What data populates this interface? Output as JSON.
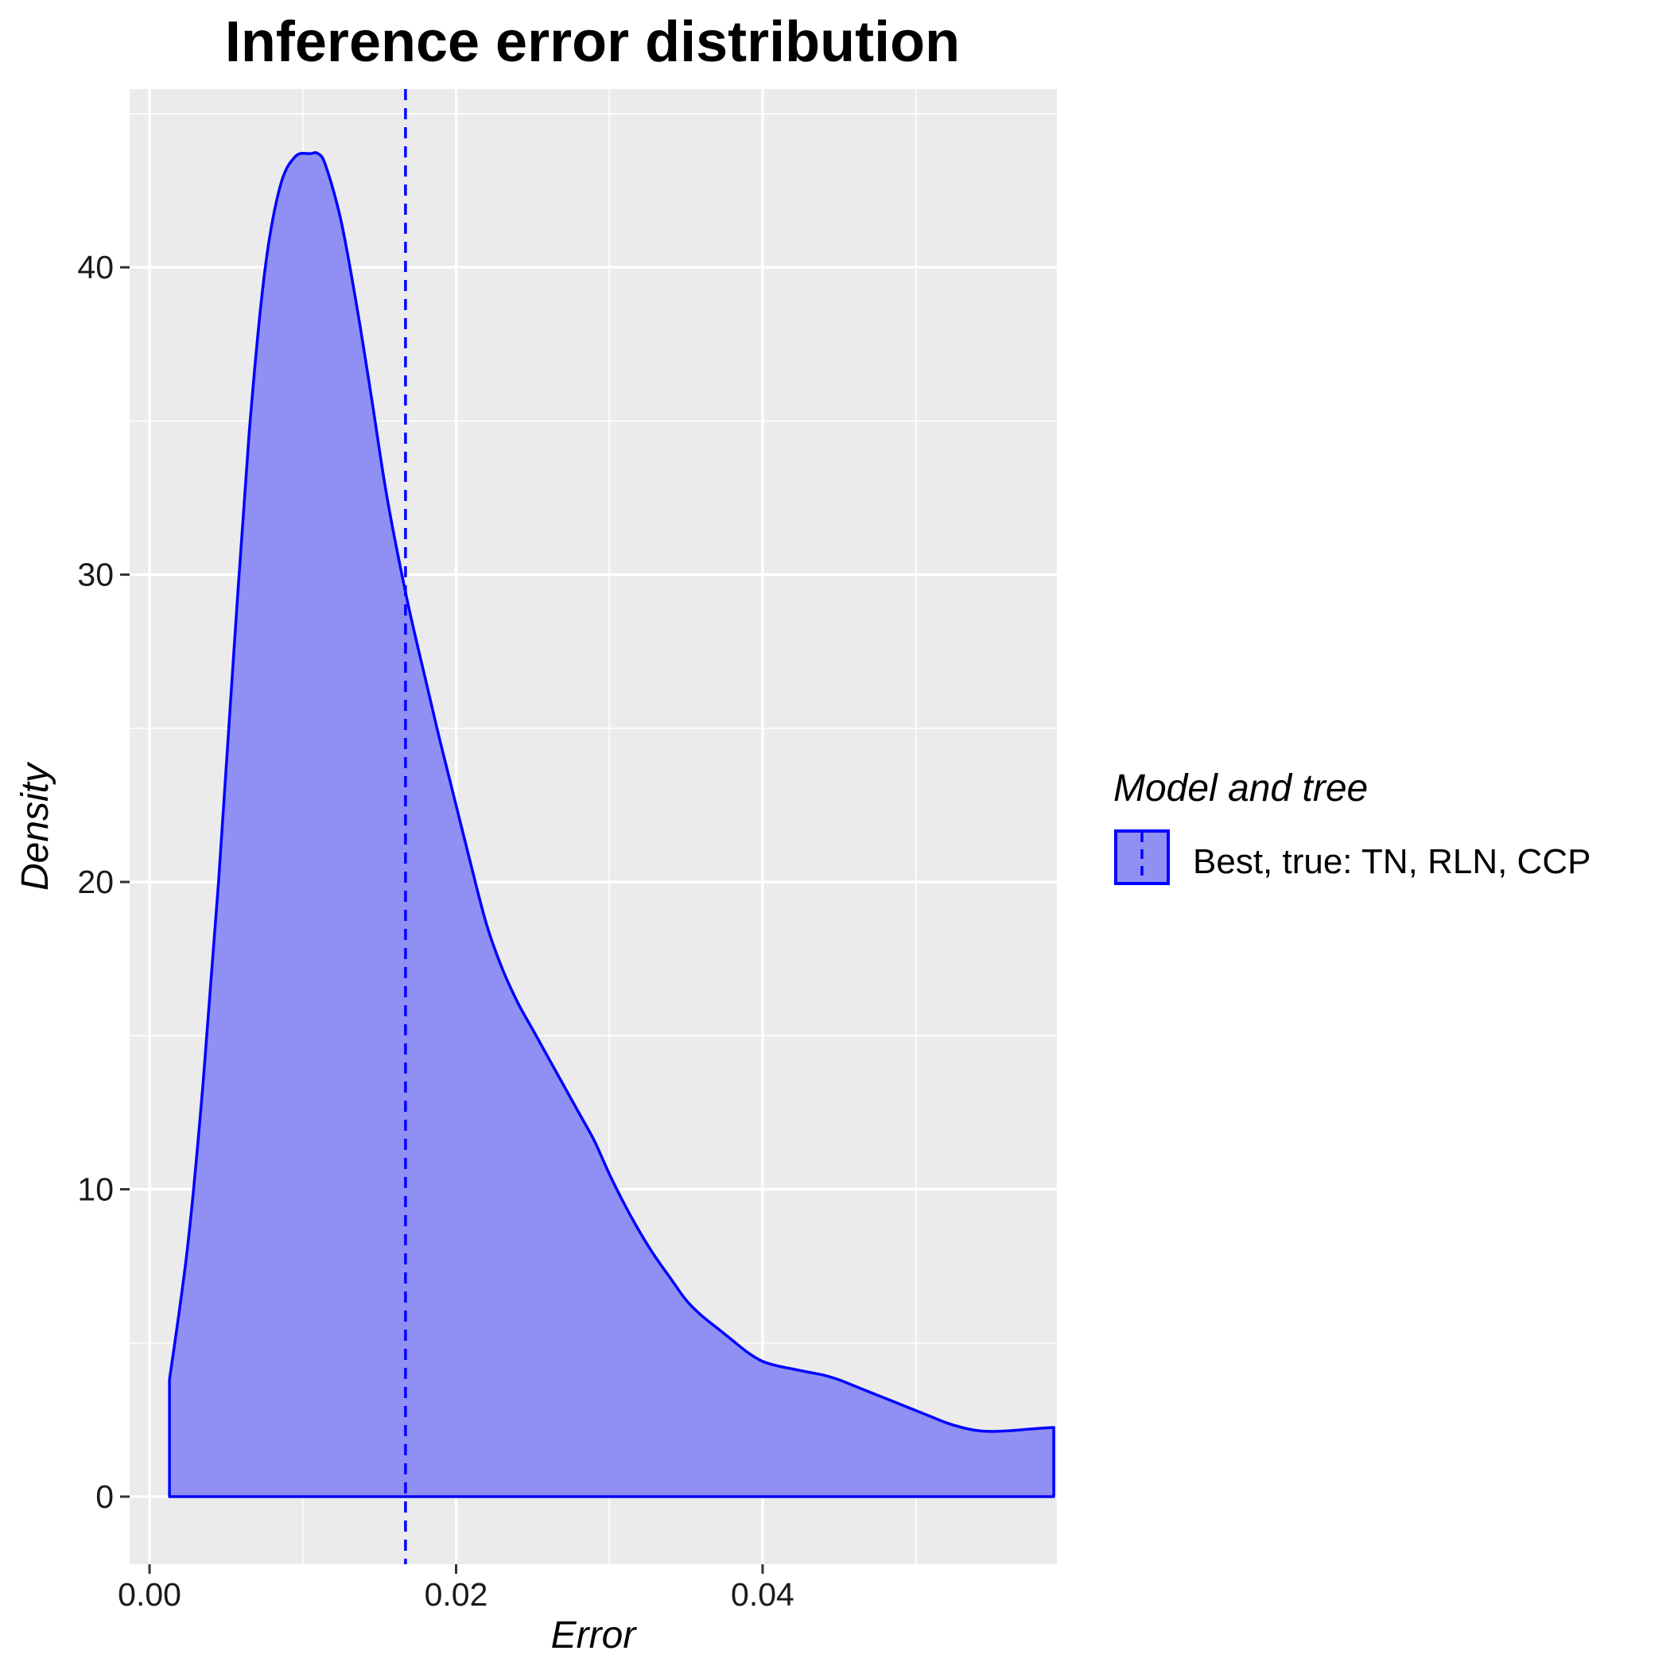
{
  "chart_data": {
    "type": "area",
    "title": "Inference error distribution",
    "xlabel": "Error",
    "ylabel": "Density",
    "xlim": [
      -0.0013,
      0.0592
    ],
    "ylim": [
      -2.2,
      45.8
    ],
    "x_ticks": [
      0.0,
      0.02,
      0.04
    ],
    "x_tick_labels": [
      "0.00",
      "0.02",
      "0.04"
    ],
    "y_ticks": [
      0,
      10,
      20,
      30,
      40
    ],
    "y_tick_labels": [
      "0",
      "10",
      "20",
      "30",
      "40"
    ],
    "grid": true,
    "legend": {
      "title": "Model and tree",
      "position": "right",
      "entries": [
        {
          "label": "Best, true: TN, RLN, CCP"
        }
      ]
    },
    "series": [
      {
        "name": "Best, true: TN, RLN, CCP",
        "fill": "#8f8ff4",
        "stroke": "#0000ff",
        "x": [
          0.0013,
          0.0025,
          0.0035,
          0.0045,
          0.0055,
          0.0065,
          0.0075,
          0.0085,
          0.0095,
          0.0105,
          0.011,
          0.0115,
          0.0125,
          0.0135,
          0.0145,
          0.0155,
          0.0168,
          0.018,
          0.019,
          0.02,
          0.021,
          0.022,
          0.023,
          0.024,
          0.025,
          0.026,
          0.027,
          0.028,
          0.029,
          0.03,
          0.031,
          0.032,
          0.033,
          0.034,
          0.035,
          0.036,
          0.037,
          0.038,
          0.039,
          0.04,
          0.041,
          0.042,
          0.043,
          0.044,
          0.045,
          0.046,
          0.047,
          0.048,
          0.049,
          0.05,
          0.051,
          0.052,
          0.053,
          0.054,
          0.055,
          0.056,
          0.057,
          0.058,
          0.059
        ],
        "y": [
          3.8,
          8.2,
          13.5,
          20.0,
          27.5,
          34.6,
          39.8,
          42.6,
          43.6,
          43.7,
          43.7,
          43.3,
          41.5,
          38.8,
          35.7,
          32.5,
          29.2,
          26.6,
          24.5,
          22.5,
          20.5,
          18.6,
          17.2,
          16.1,
          15.2,
          14.3,
          13.4,
          12.5,
          11.6,
          10.5,
          9.5,
          8.6,
          7.8,
          7.1,
          6.4,
          5.9,
          5.5,
          5.1,
          4.7,
          4.4,
          4.25,
          4.15,
          4.05,
          3.95,
          3.8,
          3.6,
          3.4,
          3.2,
          3.0,
          2.8,
          2.6,
          2.4,
          2.25,
          2.15,
          2.12,
          2.14,
          2.18,
          2.22,
          2.25
        ]
      }
    ],
    "reference_line": {
      "x": 0.0167,
      "style": "dashed",
      "color": "#0000ff"
    }
  }
}
